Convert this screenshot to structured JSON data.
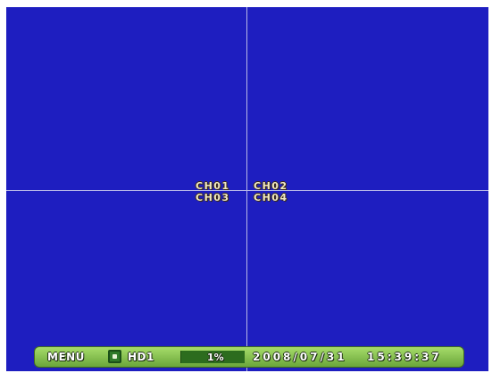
{
  "channels": [
    "CH01",
    "CH02",
    "CH03",
    "CH04"
  ],
  "status_bar": {
    "menu_label": "MENU",
    "hdd_icon": "hdd-icon",
    "hdd_label": "HD1",
    "usage_label": "1%",
    "usage_fraction": 0.01,
    "date": "2008/07/31",
    "time": "15:39:37"
  },
  "colors": {
    "video_background": "#1e1ec0",
    "status_bar": "#8cc654",
    "channel_text": "#f0e8c8"
  }
}
